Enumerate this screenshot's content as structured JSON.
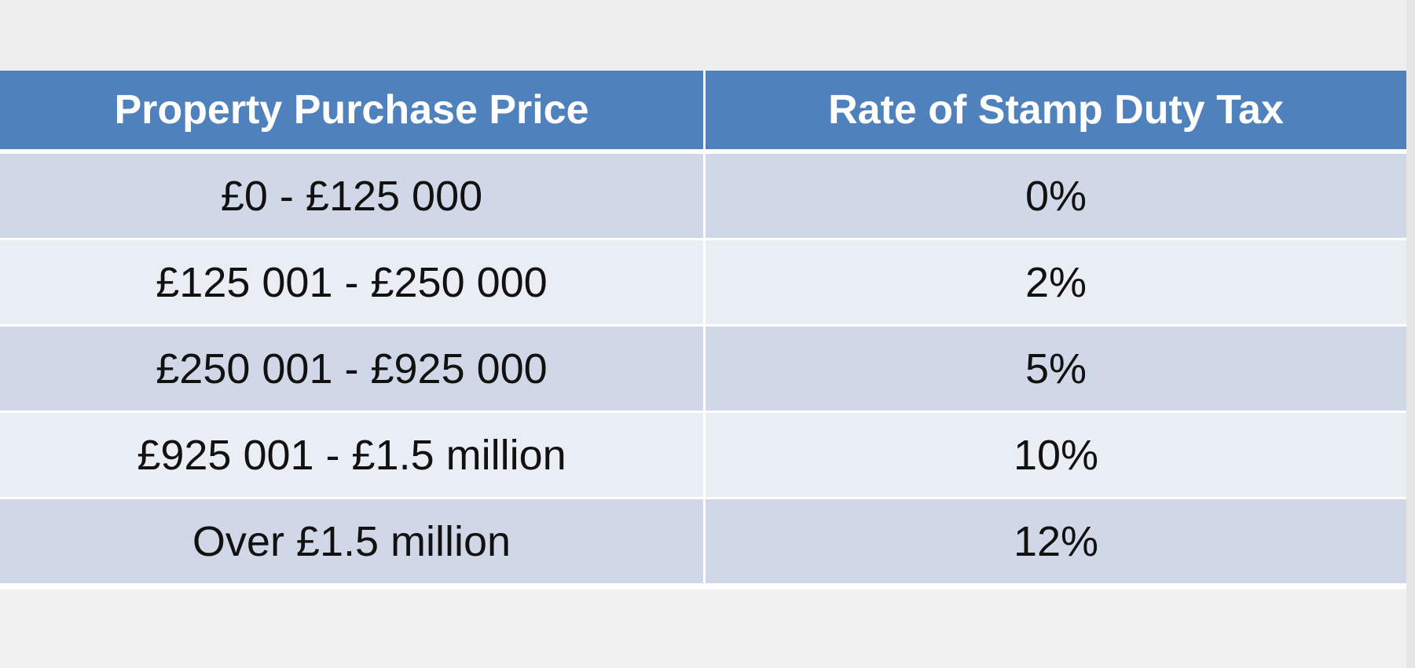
{
  "table": {
    "headers": [
      "Property Purchase Price",
      "Rate of Stamp Duty Tax"
    ],
    "rows": [
      {
        "price": "£0 - £125 000",
        "rate": "0%"
      },
      {
        "price": "£125 001 - £250 000",
        "rate": "2%"
      },
      {
        "price": "£250 001 - £925 000",
        "rate": "5%"
      },
      {
        "price": "£925 001 - £1.5 million",
        "rate": "10%"
      },
      {
        "price": "Over £1.5 million",
        "rate": "12%"
      }
    ]
  },
  "colors": {
    "header_bg": "#4f81bd",
    "row_dark": "#d0d8e8",
    "row_light": "#e9edf4"
  }
}
